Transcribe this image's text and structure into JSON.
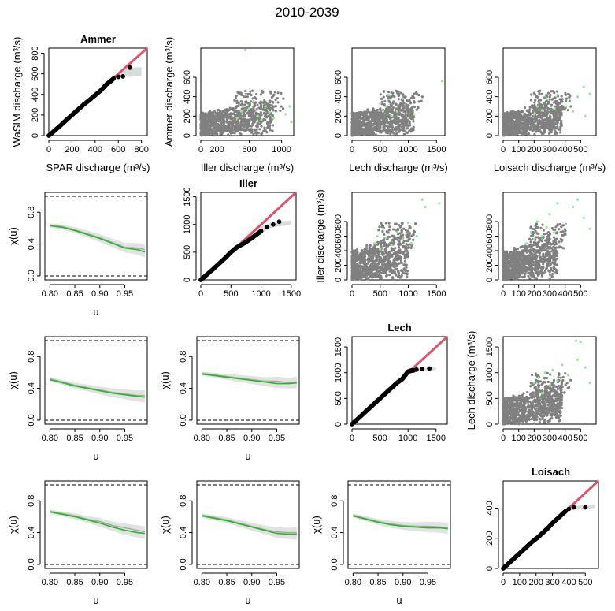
{
  "figure": {
    "title": "2010-2039"
  },
  "colors": {
    "qq_points": "#000000",
    "identity_line": "#DF536B",
    "band": "#BEBEBE",
    "scatter_main": "#808080",
    "scatter_highlight": "#90EE90",
    "chi_green": "#22BB22",
    "chi_gray": "#A8A8A8"
  },
  "chart_data": [
    {
      "id": "p11",
      "type": "scatter",
      "subtype": "qq",
      "title": "Ammer",
      "xlabel": "SPAR discharge (m³/s)",
      "ylabel": "WaSIM discharge (m³/s)",
      "xlim": [
        0,
        850
      ],
      "ylim": [
        0,
        850
      ],
      "xticks": [
        "0",
        "200",
        "400",
        "600",
        "800"
      ],
      "yticks": [
        "0",
        "200",
        "400",
        "600",
        "800"
      ],
      "qq_points": [
        [
          0,
          0
        ],
        [
          50,
          48
        ],
        [
          100,
          98
        ],
        [
          150,
          150
        ],
        [
          200,
          200
        ],
        [
          250,
          250
        ],
        [
          300,
          300
        ],
        [
          350,
          345
        ],
        [
          400,
          392
        ],
        [
          450,
          440
        ],
        [
          500,
          500
        ],
        [
          530,
          525
        ],
        [
          560,
          555
        ],
        [
          600,
          570
        ],
        [
          640,
          575
        ],
        [
          700,
          660
        ]
      ],
      "band_upper": [
        [
          500,
          510
        ],
        [
          600,
          620
        ],
        [
          700,
          660
        ],
        [
          800,
          665
        ]
      ],
      "band_lower": [
        [
          500,
          490
        ],
        [
          600,
          575
        ],
        [
          700,
          570
        ],
        [
          800,
          580
        ]
      ]
    },
    {
      "id": "p12",
      "type": "scatter",
      "title": "",
      "xlabel": "Iller discharge (m³/s)",
      "ylabel": "Ammer discharge (m³/s)",
      "xlim": [
        0,
        1150
      ],
      "ylim": [
        0,
        900
      ],
      "xticks": [
        "0",
        "200",
        "600",
        "1000"
      ],
      "yticks": [
        "0",
        "200",
        "400",
        "600"
      ],
      "gray_cloud": {
        "x_max": 900,
        "y_max": 420,
        "n": 900
      },
      "green_points": [
        [
          450,
          180
        ],
        [
          500,
          250
        ],
        [
          520,
          300
        ],
        [
          560,
          420
        ],
        [
          600,
          280
        ],
        [
          650,
          350
        ],
        [
          700,
          200
        ],
        [
          750,
          160
        ],
        [
          800,
          300
        ],
        [
          850,
          240
        ],
        [
          900,
          180
        ],
        [
          1050,
          220
        ],
        [
          1100,
          300
        ],
        [
          1120,
          140
        ],
        [
          550,
          880
        ],
        [
          1100,
          920
        ]
      ]
    },
    {
      "id": "p13",
      "type": "scatter",
      "title": "",
      "xlabel": "Lech discharge (m³/s)",
      "ylabel": "",
      "xlim": [
        0,
        1650
      ],
      "ylim": [
        0,
        900
      ],
      "xticks": [
        "0",
        "500",
        "1000",
        "1500"
      ],
      "yticks": [
        "0",
        "200",
        "400",
        "600"
      ],
      "gray_cloud": {
        "x_max": 1100,
        "y_max": 420,
        "n": 900
      },
      "green_points": [
        [
          500,
          330
        ],
        [
          550,
          250
        ],
        [
          600,
          300
        ],
        [
          650,
          420
        ],
        [
          700,
          200
        ],
        [
          800,
          250
        ],
        [
          900,
          380
        ],
        [
          1000,
          180
        ],
        [
          1100,
          220
        ],
        [
          1600,
          560
        ],
        [
          800,
          920
        ]
      ]
    },
    {
      "id": "p14",
      "type": "scatter",
      "title": "",
      "xlabel": "Loisach discharge (m³/s)",
      "ylabel": "",
      "xlim": [
        0,
        600
      ],
      "ylim": [
        0,
        900
      ],
      "xticks": [
        "0",
        "100",
        "200",
        "300",
        "400",
        "500"
      ],
      "yticks": [
        "0",
        "200",
        "400",
        "600"
      ],
      "gray_cloud": {
        "x_max": 380,
        "y_max": 420,
        "n": 900
      },
      "green_points": [
        [
          200,
          220
        ],
        [
          220,
          300
        ],
        [
          250,
          260
        ],
        [
          280,
          380
        ],
        [
          300,
          220
        ],
        [
          330,
          280
        ],
        [
          350,
          420
        ],
        [
          400,
          300
        ],
        [
          450,
          250
        ],
        [
          480,
          400
        ],
        [
          520,
          500
        ],
        [
          530,
          200
        ],
        [
          560,
          430
        ],
        [
          340,
          920
        ]
      ]
    },
    {
      "id": "p21",
      "type": "line",
      "subtype": "chi",
      "title": "",
      "xlabel": "u",
      "ylabel": "χ(u)",
      "xlim": [
        0.79,
        0.995
      ],
      "ylim": [
        -0.05,
        1.05
      ],
      "xticks": [
        "0.80",
        "0.85",
        "0.90",
        "0.95"
      ],
      "yticks": [
        "0.0",
        "0.4",
        "0.8"
      ],
      "x": [
        0.8,
        0.825,
        0.85,
        0.875,
        0.9,
        0.925,
        0.95,
        0.975,
        0.99
      ],
      "green": [
        0.63,
        0.61,
        0.57,
        0.52,
        0.47,
        0.41,
        0.35,
        0.33,
        0.3
      ],
      "gray": [
        0.64,
        0.62,
        0.58,
        0.53,
        0.48,
        0.42,
        0.36,
        0.35,
        0.33
      ]
    },
    {
      "id": "p22",
      "type": "scatter",
      "subtype": "qq",
      "title": "Iller",
      "xlabel": "",
      "ylabel": "",
      "xlim": [
        0,
        1580
      ],
      "ylim": [
        0,
        1580
      ],
      "xticks": [
        "0",
        "500",
        "1000",
        "1500"
      ],
      "yticks": [
        "0",
        "500",
        "1000",
        "1500"
      ],
      "qq_points": [
        [
          0,
          0
        ],
        [
          100,
          95
        ],
        [
          200,
          190
        ],
        [
          300,
          290
        ],
        [
          400,
          390
        ],
        [
          500,
          500
        ],
        [
          600,
          590
        ],
        [
          700,
          650
        ],
        [
          800,
          720
        ],
        [
          900,
          800
        ],
        [
          1000,
          880
        ],
        [
          1100,
          950
        ],
        [
          1200,
          1000
        ],
        [
          1300,
          1050
        ]
      ],
      "band_upper": [
        [
          800,
          770
        ],
        [
          1000,
          960
        ],
        [
          1200,
          1050
        ],
        [
          1500,
          1070
        ]
      ],
      "band_lower": [
        [
          800,
          700
        ],
        [
          1000,
          850
        ],
        [
          1200,
          950
        ],
        [
          1500,
          1000
        ]
      ]
    },
    {
      "id": "p23",
      "type": "scatter",
      "title": "",
      "xlabel": "",
      "ylabel": "Iller discharge (m³/s)",
      "xlim": [
        0,
        1650
      ],
      "ylim": [
        0,
        1200
      ],
      "xticks": [
        "0",
        "500",
        "1000",
        "1500"
      ],
      "yticks": [
        "0",
        "200",
        "400",
        "600",
        "800"
      ],
      "gray_cloud": {
        "x_max": 1000,
        "y_max": 720,
        "n": 900
      },
      "green_points": [
        [
          400,
          500
        ],
        [
          450,
          600
        ],
        [
          500,
          420
        ],
        [
          550,
          700
        ],
        [
          600,
          580
        ],
        [
          700,
          480
        ],
        [
          800,
          650
        ],
        [
          900,
          560
        ],
        [
          1000,
          780
        ],
        [
          1050,
          500
        ],
        [
          1150,
          600
        ],
        [
          1250,
          1100
        ],
        [
          1300,
          1000
        ],
        [
          1550,
          1050
        ]
      ]
    },
    {
      "id": "p24",
      "type": "scatter",
      "title": "",
      "xlabel": "",
      "ylabel": "",
      "xlim": [
        0,
        600
      ],
      "ylim": [
        0,
        1200
      ],
      "xticks": [
        "0",
        "100",
        "200",
        "300",
        "400",
        "500"
      ],
      "yticks": [
        "0",
        "200",
        "400",
        "600",
        "800"
      ],
      "gray_cloud": {
        "x_max": 350,
        "y_max": 700,
        "n": 900
      },
      "green_points": [
        [
          150,
          500
        ],
        [
          180,
          650
        ],
        [
          200,
          560
        ],
        [
          220,
          800
        ],
        [
          250,
          600
        ],
        [
          280,
          720
        ],
        [
          300,
          900
        ],
        [
          330,
          650
        ],
        [
          350,
          1050
        ],
        [
          400,
          760
        ],
        [
          450,
          1000
        ],
        [
          480,
          1100
        ],
        [
          520,
          850
        ],
        [
          560,
          700
        ]
      ]
    },
    {
      "id": "p31",
      "type": "line",
      "subtype": "chi",
      "title": "",
      "xlabel": "u",
      "ylabel": "χ(u)",
      "xlim": [
        0.79,
        0.995
      ],
      "ylim": [
        -0.05,
        1.05
      ],
      "xticks": [
        "0.80",
        "0.85",
        "0.90",
        "0.95"
      ],
      "yticks": [
        "0.0",
        "0.4",
        "0.8"
      ],
      "x": [
        0.8,
        0.825,
        0.85,
        0.875,
        0.9,
        0.925,
        0.95,
        0.975,
        0.99
      ],
      "green": [
        0.51,
        0.47,
        0.43,
        0.4,
        0.37,
        0.34,
        0.32,
        0.3,
        0.29
      ],
      "gray": [
        0.52,
        0.48,
        0.44,
        0.41,
        0.38,
        0.35,
        0.33,
        0.31,
        0.31
      ]
    },
    {
      "id": "p32",
      "type": "line",
      "subtype": "chi",
      "title": "",
      "xlabel": "u",
      "ylabel": "χ(u)",
      "xlim": [
        0.79,
        0.995
      ],
      "ylim": [
        -0.05,
        1.05
      ],
      "xticks": [
        "0.80",
        "0.85",
        "0.90",
        "0.95"
      ],
      "yticks": [
        "0.0",
        "0.4",
        "0.8"
      ],
      "x": [
        0.8,
        0.825,
        0.85,
        0.875,
        0.9,
        0.925,
        0.95,
        0.975,
        0.99
      ],
      "green": [
        0.58,
        0.56,
        0.54,
        0.52,
        0.5,
        0.48,
        0.46,
        0.46,
        0.47
      ],
      "gray": [
        0.59,
        0.57,
        0.55,
        0.53,
        0.51,
        0.49,
        0.49,
        0.47,
        0.48
      ]
    },
    {
      "id": "p33",
      "type": "scatter",
      "subtype": "qq",
      "title": "Lech",
      "xlabel": "",
      "ylabel": "",
      "xlim": [
        0,
        1700
      ],
      "ylim": [
        0,
        1700
      ],
      "xticks": [
        "0",
        "500",
        "1000",
        "1500"
      ],
      "yticks": [
        "0",
        "500",
        "1000",
        "1500"
      ],
      "qq_points": [
        [
          0,
          0
        ],
        [
          100,
          100
        ],
        [
          200,
          200
        ],
        [
          300,
          300
        ],
        [
          400,
          400
        ],
        [
          500,
          500
        ],
        [
          600,
          600
        ],
        [
          700,
          700
        ],
        [
          800,
          800
        ],
        [
          900,
          880
        ],
        [
          950,
          950
        ],
        [
          1000,
          1020
        ],
        [
          1050,
          1040
        ],
        [
          1100,
          1045
        ],
        [
          1150,
          1060
        ],
        [
          1250,
          1070
        ],
        [
          1380,
          1080
        ]
      ],
      "band_upper": [
        [
          800,
          850
        ],
        [
          1000,
          1050
        ],
        [
          1200,
          1090
        ],
        [
          1500,
          1100
        ]
      ],
      "band_lower": [
        [
          800,
          780
        ],
        [
          1000,
          960
        ],
        [
          1200,
          1030
        ],
        [
          1500,
          1050
        ]
      ]
    },
    {
      "id": "p34",
      "type": "scatter",
      "title": "",
      "xlabel": "",
      "ylabel": "Lech discharge (m³/s)",
      "xlim": [
        0,
        600
      ],
      "ylim": [
        0,
        1700
      ],
      "xticks": [
        "0",
        "100",
        "200",
        "300",
        "400",
        "500"
      ],
      "yticks": [
        "0",
        "500",
        "1000",
        "1500"
      ],
      "gray_cloud": {
        "x_max": 380,
        "y_max": 900,
        "n": 900
      },
      "green_points": [
        [
          200,
          800
        ],
        [
          230,
          900
        ],
        [
          250,
          600
        ],
        [
          270,
          1000
        ],
        [
          300,
          750
        ],
        [
          320,
          1050
        ],
        [
          350,
          850
        ],
        [
          380,
          1150
        ],
        [
          420,
          950
        ],
        [
          480,
          1250
        ],
        [
          530,
          1100
        ],
        [
          560,
          800
        ],
        [
          500,
          1600
        ],
        [
          470,
          1620
        ]
      ]
    },
    {
      "id": "p41",
      "type": "line",
      "subtype": "chi",
      "title": "",
      "xlabel": "u",
      "ylabel": "χ(u)",
      "xlim": [
        0.79,
        0.995
      ],
      "ylim": [
        -0.05,
        1.05
      ],
      "xticks": [
        "0.80",
        "0.85",
        "0.90",
        "0.95"
      ],
      "yticks": [
        "0.0",
        "0.4",
        "0.8"
      ],
      "x": [
        0.8,
        0.825,
        0.85,
        0.875,
        0.9,
        0.925,
        0.95,
        0.975,
        0.99
      ],
      "green": [
        0.66,
        0.63,
        0.6,
        0.56,
        0.52,
        0.47,
        0.43,
        0.4,
        0.39
      ],
      "gray": [
        0.67,
        0.64,
        0.61,
        0.57,
        0.54,
        0.49,
        0.46,
        0.43,
        0.41
      ]
    },
    {
      "id": "p42",
      "type": "line",
      "subtype": "chi",
      "title": "",
      "xlabel": "u",
      "ylabel": "χ(u)",
      "xlim": [
        0.79,
        0.995
      ],
      "ylim": [
        -0.05,
        1.05
      ],
      "xticks": [
        "0.80",
        "0.85",
        "0.90",
        "0.95"
      ],
      "yticks": [
        "0.0",
        "0.4",
        "0.8"
      ],
      "x": [
        0.8,
        0.825,
        0.85,
        0.875,
        0.9,
        0.925,
        0.95,
        0.975,
        0.99
      ],
      "green": [
        0.61,
        0.58,
        0.55,
        0.51,
        0.47,
        0.43,
        0.39,
        0.38,
        0.38
      ],
      "gray": [
        0.62,
        0.59,
        0.56,
        0.52,
        0.48,
        0.44,
        0.41,
        0.4,
        0.4
      ]
    },
    {
      "id": "p43",
      "type": "line",
      "subtype": "chi",
      "title": "",
      "xlabel": "u",
      "ylabel": "χ(u)",
      "xlim": [
        0.79,
        0.995
      ],
      "ylim": [
        -0.05,
        1.05
      ],
      "xticks": [
        "0.80",
        "0.85",
        "0.90",
        "0.95"
      ],
      "yticks": [
        "0.0",
        "0.4",
        "0.8"
      ],
      "x": [
        0.8,
        0.825,
        0.85,
        0.875,
        0.9,
        0.925,
        0.95,
        0.975,
        0.99
      ],
      "green": [
        0.61,
        0.57,
        0.53,
        0.5,
        0.48,
        0.47,
        0.46,
        0.46,
        0.45
      ],
      "gray": [
        0.62,
        0.58,
        0.54,
        0.51,
        0.49,
        0.48,
        0.48,
        0.47,
        0.46
      ]
    },
    {
      "id": "p44",
      "type": "scatter",
      "subtype": "qq",
      "title": "Loisach",
      "xlabel": "",
      "ylabel": "",
      "xlim": [
        0,
        580
      ],
      "ylim": [
        0,
        580
      ],
      "xticks": [
        "0",
        "100",
        "200",
        "300",
        "400",
        "500"
      ],
      "yticks": [
        "0",
        "200",
        "400"
      ],
      "qq_points": [
        [
          0,
          0
        ],
        [
          30,
          30
        ],
        [
          60,
          60
        ],
        [
          90,
          90
        ],
        [
          120,
          120
        ],
        [
          150,
          150
        ],
        [
          180,
          180
        ],
        [
          210,
          205
        ],
        [
          240,
          235
        ],
        [
          270,
          265
        ],
        [
          300,
          300
        ],
        [
          330,
          330
        ],
        [
          360,
          360
        ],
        [
          380,
          380
        ],
        [
          400,
          395
        ],
        [
          430,
          405
        ],
        [
          500,
          405
        ]
      ],
      "band_upper": [
        [
          300,
          305
        ],
        [
          400,
          410
        ],
        [
          500,
          420
        ],
        [
          560,
          425
        ]
      ],
      "band_lower": [
        [
          300,
          290
        ],
        [
          400,
          385
        ],
        [
          500,
          395
        ],
        [
          560,
          400
        ]
      ]
    }
  ]
}
